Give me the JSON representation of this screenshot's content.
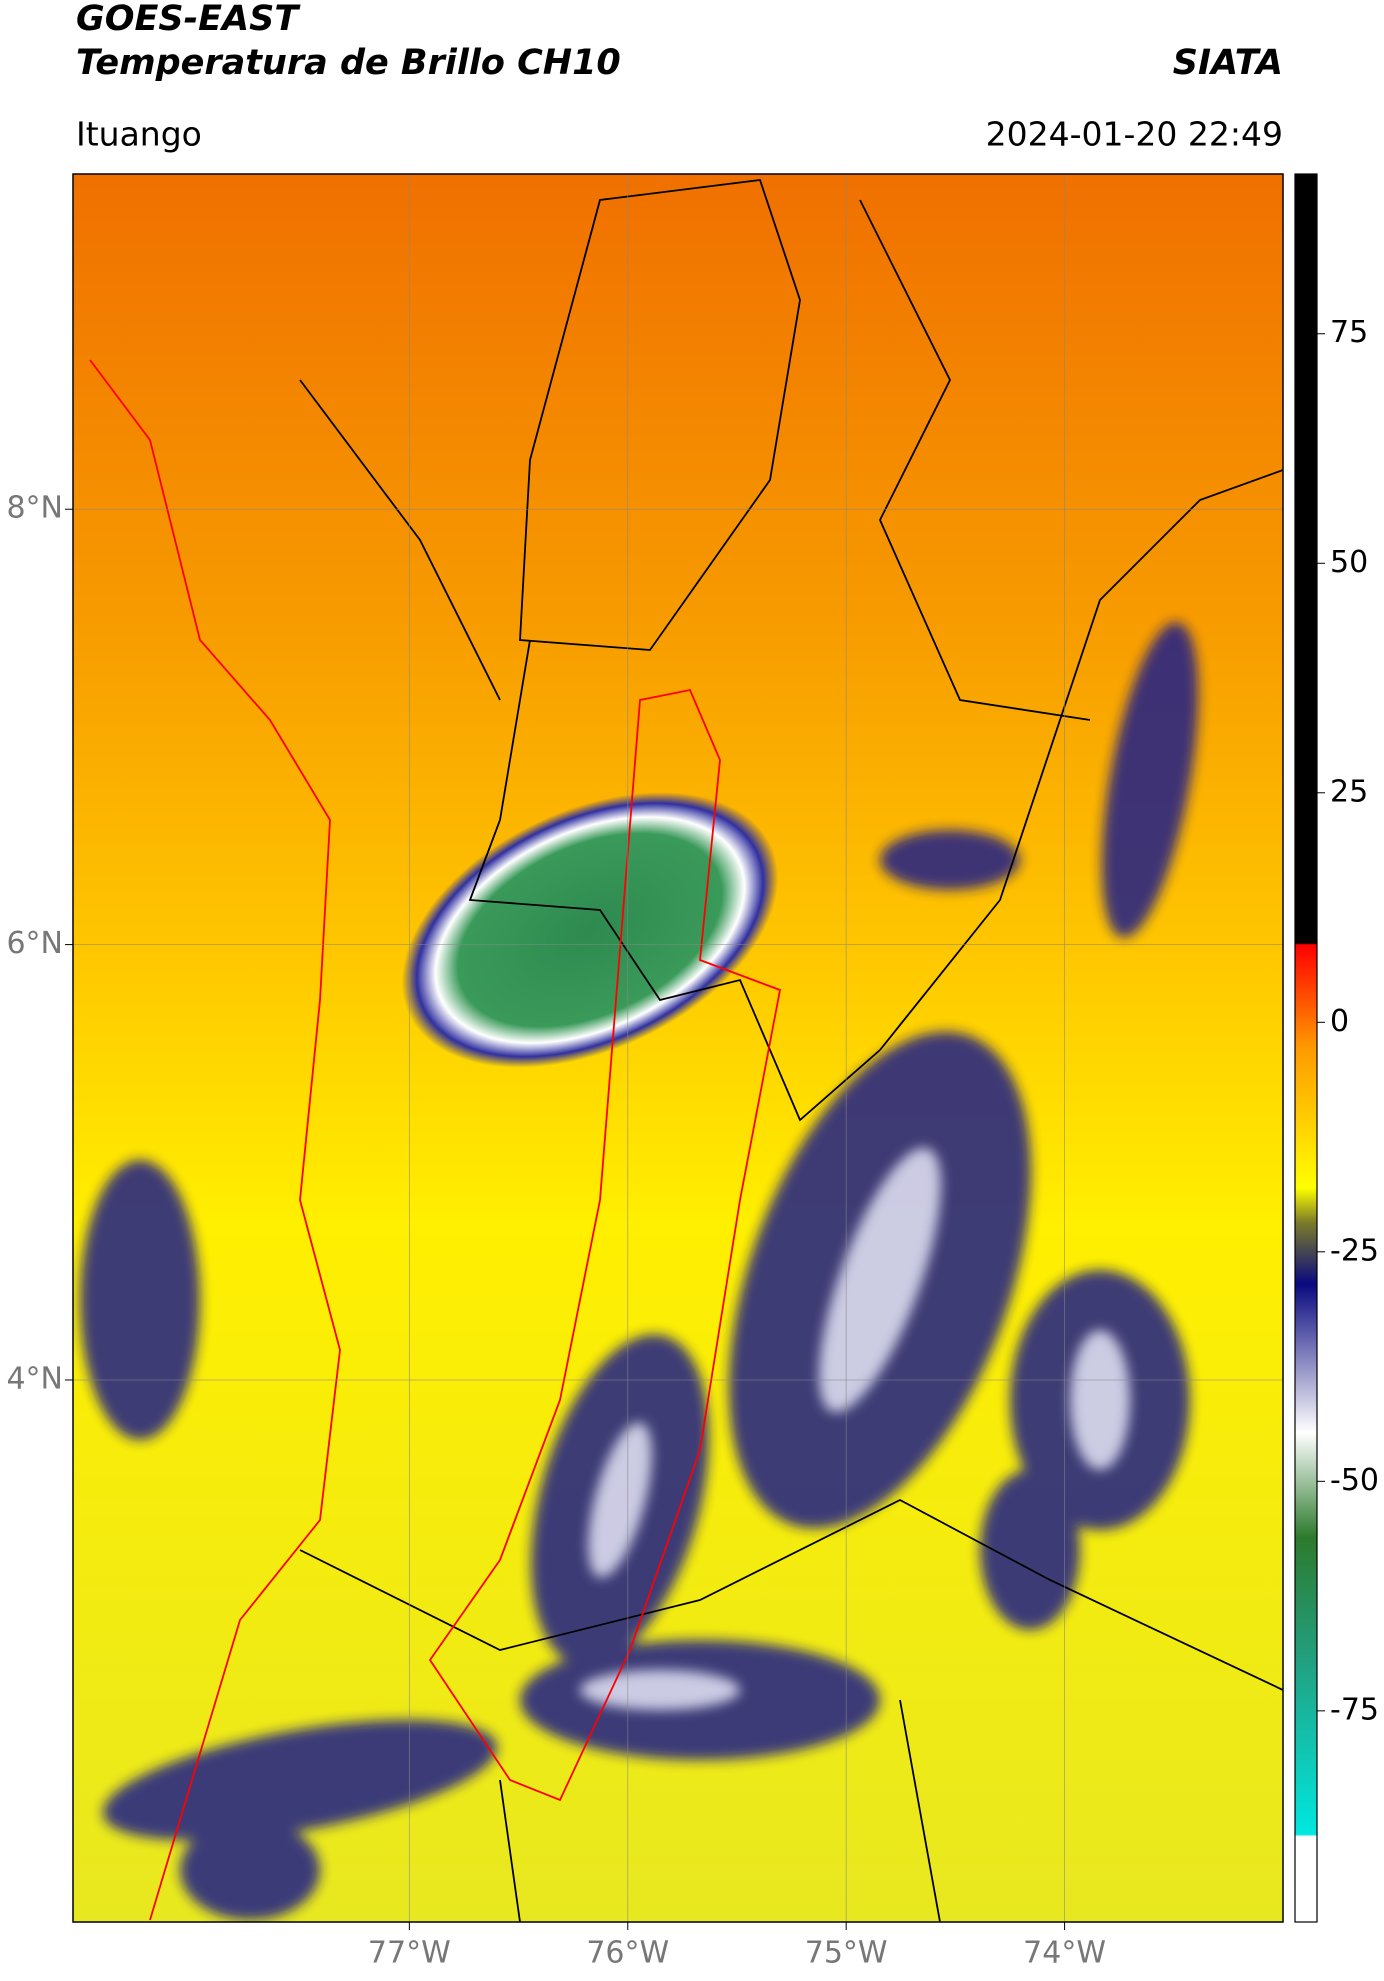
{
  "header": {
    "title": "GOES-EAST",
    "subtitle": "Temperatura de Brillo CH10",
    "source": "SIATA",
    "location": "Ituango",
    "datetime": "2024-01-20 22:49"
  },
  "map": {
    "lonlim": [
      -78.54,
      -73.0
    ],
    "latlim": [
      1.51,
      9.54
    ],
    "lonticks": [
      {
        "value": -77,
        "label": "77°W"
      },
      {
        "value": -76,
        "label": "76°W"
      },
      {
        "value": -75,
        "label": "75°W"
      },
      {
        "value": -74,
        "label": "74°W"
      }
    ],
    "latticks": [
      {
        "value": 8,
        "label": "8°N"
      },
      {
        "value": 6,
        "label": "6°N"
      },
      {
        "value": 4,
        "label": "4°N"
      }
    ]
  },
  "colorbar": {
    "lim": [
      -98,
      92.4
    ],
    "ticks": [
      75,
      50,
      25,
      0,
      -25,
      -50,
      -75
    ]
  }
}
